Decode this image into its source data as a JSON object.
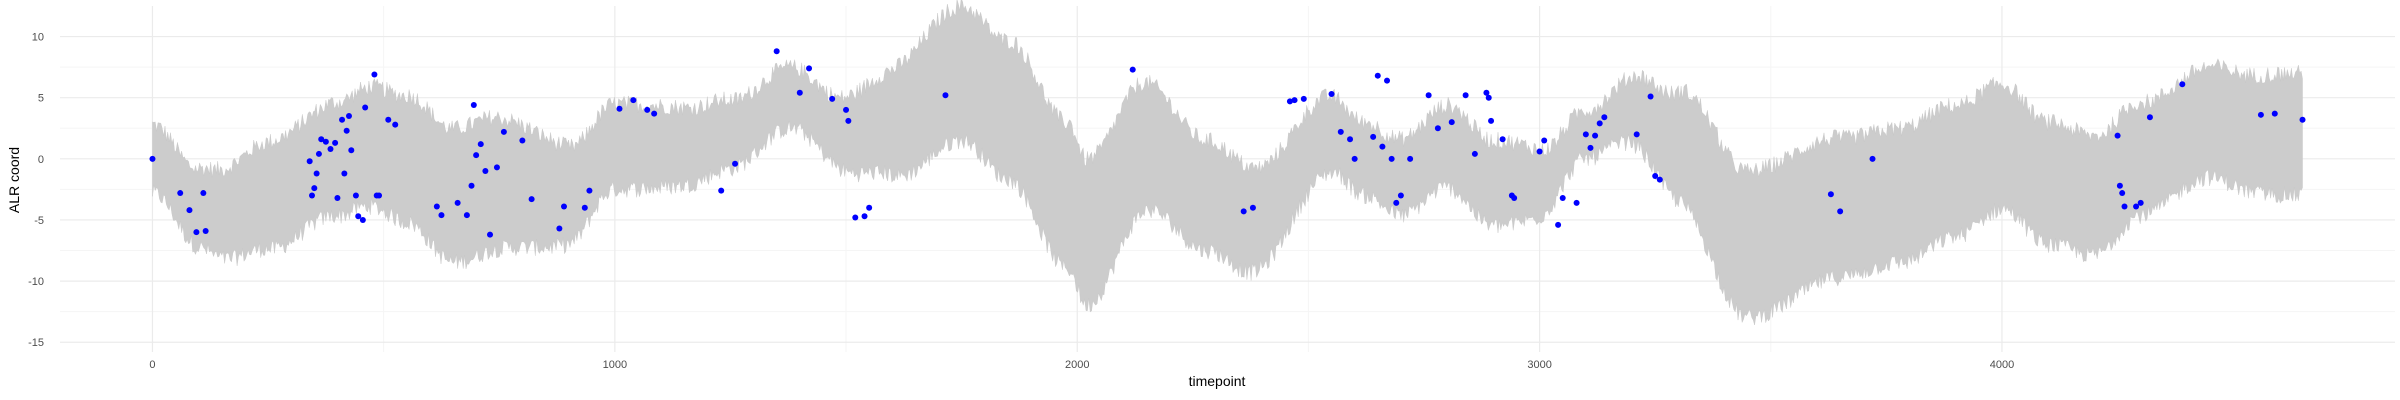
{
  "chart_data": {
    "type": "scatter",
    "title": "",
    "xlabel": "timepoint",
    "ylabel": "ALR coord",
    "xlim": [
      -200,
      4850
    ],
    "ylim": [
      -15.8,
      12.5
    ],
    "x_ticks": [
      0,
      1000,
      2000,
      3000,
      4000
    ],
    "x_tick_labels": [
      "0",
      "1000",
      "2000",
      "3000",
      "4000"
    ],
    "y_ticks": [
      -15,
      -10,
      -5,
      0,
      5,
      10
    ],
    "y_tick_labels": [
      "-15",
      "-10",
      "-5",
      "0",
      "5",
      "10"
    ],
    "grid": true,
    "colors": {
      "points": "#0000ff",
      "band": "#cccccc",
      "grid_major": "#ebebeb",
      "grid_minor": "#f5f5f5"
    },
    "band": {
      "x_range": [
        0,
        4650
      ],
      "center": [
        [
          0,
          0
        ],
        [
          100,
          -4
        ],
        [
          150,
          -4.5
        ],
        [
          250,
          -3
        ],
        [
          400,
          0
        ],
        [
          470,
          1
        ],
        [
          550,
          0
        ],
        [
          650,
          -3
        ],
        [
          750,
          -2
        ],
        [
          900,
          -3
        ],
        [
          1000,
          1
        ],
        [
          1150,
          1
        ],
        [
          1250,
          2
        ],
        [
          1380,
          5
        ],
        [
          1500,
          2
        ],
        [
          1600,
          3
        ],
        [
          1750,
          7
        ],
        [
          1850,
          4
        ],
        [
          1980,
          -3
        ],
        [
          2020,
          -6
        ],
        [
          2150,
          1
        ],
        [
          2280,
          -3
        ],
        [
          2380,
          -5
        ],
        [
          2550,
          2
        ],
        [
          2620,
          0
        ],
        [
          2700,
          -1.5
        ],
        [
          2800,
          1
        ],
        [
          2900,
          -2
        ],
        [
          3000,
          -2
        ],
        [
          3100,
          2
        ],
        [
          3200,
          4
        ],
        [
          3300,
          1
        ],
        [
          3450,
          -7
        ],
        [
          3650,
          -4
        ],
        [
          3780,
          -3
        ],
        [
          3900,
          -1
        ],
        [
          4000,
          1
        ],
        [
          4100,
          -2
        ],
        [
          4200,
          -3
        ],
        [
          4300,
          0
        ],
        [
          4450,
          3
        ],
        [
          4550,
          2
        ],
        [
          4650,
          2
        ]
      ],
      "halfwidth": [
        [
          0,
          2.8
        ],
        [
          300,
          4.5
        ],
        [
          700,
          5.5
        ],
        [
          1000,
          3.5
        ],
        [
          1400,
          2.5
        ],
        [
          1750,
          5.5
        ],
        [
          2000,
          6
        ],
        [
          2300,
          4.5
        ],
        [
          2600,
          3
        ],
        [
          2900,
          3.5
        ],
        [
          3100,
          2
        ],
        [
          3450,
          6
        ],
        [
          3800,
          5.5
        ],
        [
          4100,
          5
        ],
        [
          4400,
          4.5
        ],
        [
          4650,
          5
        ]
      ]
    },
    "points": [
      [
        0,
        0
      ],
      [
        60,
        -2.8
      ],
      [
        80,
        -4.2
      ],
      [
        95,
        -6
      ],
      [
        110,
        -2.8
      ],
      [
        115,
        -5.9
      ],
      [
        340,
        -0.2
      ],
      [
        345,
        -3
      ],
      [
        350,
        -2.4
      ],
      [
        355,
        -1.2
      ],
      [
        360,
        0.4
      ],
      [
        365,
        1.6
      ],
      [
        375,
        1.4
      ],
      [
        385,
        0.8
      ],
      [
        395,
        1.3
      ],
      [
        400,
        -3.2
      ],
      [
        410,
        3.2
      ],
      [
        415,
        -1.2
      ],
      [
        420,
        2.3
      ],
      [
        425,
        3.5
      ],
      [
        430,
        0.7
      ],
      [
        440,
        -3
      ],
      [
        445,
        -4.7
      ],
      [
        455,
        -5
      ],
      [
        460,
        4.2
      ],
      [
        480,
        6.9
      ],
      [
        485,
        -3
      ],
      [
        490,
        -3
      ],
      [
        510,
        3.2
      ],
      [
        525,
        2.8
      ],
      [
        615,
        -3.9
      ],
      [
        625,
        -4.6
      ],
      [
        660,
        -3.6
      ],
      [
        680,
        -4.6
      ],
      [
        690,
        -2.2
      ],
      [
        695,
        4.4
      ],
      [
        700,
        0.3
      ],
      [
        710,
        1.2
      ],
      [
        720,
        -1
      ],
      [
        730,
        -6.2
      ],
      [
        745,
        -0.7
      ],
      [
        760,
        2.2
      ],
      [
        800,
        1.5
      ],
      [
        820,
        -3.3
      ],
      [
        880,
        -5.7
      ],
      [
        890,
        -3.9
      ],
      [
        935,
        -4
      ],
      [
        945,
        -2.6
      ],
      [
        1010,
        4.1
      ],
      [
        1040,
        4.8
      ],
      [
        1070,
        4
      ],
      [
        1085,
        3.7
      ],
      [
        1230,
        -2.6
      ],
      [
        1260,
        -0.4
      ],
      [
        1350,
        8.8
      ],
      [
        1400,
        5.4
      ],
      [
        1420,
        7.4
      ],
      [
        1470,
        4.9
      ],
      [
        1500,
        4
      ],
      [
        1505,
        3.1
      ],
      [
        1520,
        -4.8
      ],
      [
        1540,
        -4.7
      ],
      [
        1550,
        -4
      ],
      [
        1715,
        5.2
      ],
      [
        2120,
        7.3
      ],
      [
        2360,
        -4.3
      ],
      [
        2380,
        -4
      ],
      [
        2460,
        4.7
      ],
      [
        2470,
        4.8
      ],
      [
        2490,
        4.9
      ],
      [
        2550,
        5.3
      ],
      [
        2570,
        2.2
      ],
      [
        2590,
        1.6
      ],
      [
        2600,
        0
      ],
      [
        2640,
        1.8
      ],
      [
        2650,
        6.8
      ],
      [
        2660,
        1
      ],
      [
        2670,
        6.4
      ],
      [
        2680,
        0
      ],
      [
        2690,
        -3.6
      ],
      [
        2700,
        -3
      ],
      [
        2720,
        0
      ],
      [
        2760,
        5.2
      ],
      [
        2780,
        2.5
      ],
      [
        2810,
        3
      ],
      [
        2840,
        5.2
      ],
      [
        2860,
        0.4
      ],
      [
        2885,
        5.4
      ],
      [
        2890,
        5
      ],
      [
        2895,
        3.1
      ],
      [
        2920,
        1.6
      ],
      [
        2940,
        -3
      ],
      [
        2945,
        -3.2
      ],
      [
        3000,
        0.6
      ],
      [
        3010,
        1.5
      ],
      [
        3040,
        -5.4
      ],
      [
        3050,
        -3.2
      ],
      [
        3080,
        -3.6
      ],
      [
        3100,
        2
      ],
      [
        3110,
        0.9
      ],
      [
        3120,
        1.9
      ],
      [
        3130,
        2.9
      ],
      [
        3140,
        3.4
      ],
      [
        3210,
        2
      ],
      [
        3240,
        5.1
      ],
      [
        3250,
        -1.4
      ],
      [
        3260,
        -1.7
      ],
      [
        3630,
        -2.9
      ],
      [
        3650,
        -4.3
      ],
      [
        3720,
        0
      ],
      [
        4250,
        1.9
      ],
      [
        4255,
        -2.2
      ],
      [
        4260,
        -2.8
      ],
      [
        4265,
        -3.9
      ],
      [
        4290,
        -3.9
      ],
      [
        4300,
        -3.6
      ],
      [
        4320,
        3.4
      ],
      [
        4390,
        6.1
      ],
      [
        4560,
        3.6
      ],
      [
        4590,
        3.7
      ],
      [
        4650,
        3.2
      ]
    ]
  }
}
